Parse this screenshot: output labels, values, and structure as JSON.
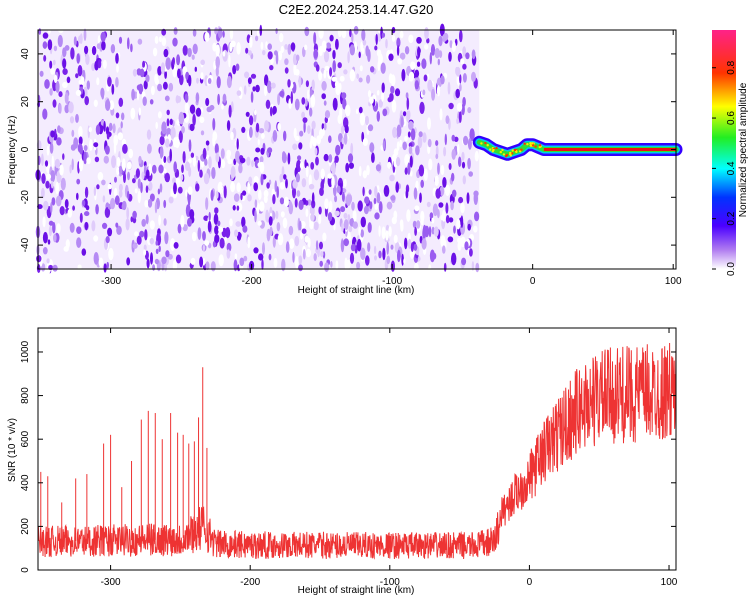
{
  "figure_title": "C2E2.2024.253.14.47.G20",
  "chart_data": [
    {
      "type": "heatmap",
      "xlabel": "Height of straight line (km)",
      "ylabel": "Frequency (Hz)",
      "xlim": [
        -352,
        102
      ],
      "ylim": [
        -50,
        50
      ],
      "xticks": [
        -300,
        -200,
        -100,
        0,
        100
      ],
      "yticks": [
        -40,
        -20,
        0,
        20,
        40
      ],
      "noise_region_x": [
        -352,
        -38
      ],
      "signal_track": [
        {
          "x": -38,
          "y": 3
        },
        {
          "x": -33,
          "y": 2
        },
        {
          "x": -28,
          "y": 0
        },
        {
          "x": -23,
          "y": -1
        },
        {
          "x": -18,
          "y": -2
        },
        {
          "x": -13,
          "y": -1
        },
        {
          "x": -8,
          "y": 0
        },
        {
          "x": -4,
          "y": 2
        },
        {
          "x": 0,
          "y": 2
        },
        {
          "x": 4,
          "y": 1
        },
        {
          "x": 8,
          "y": 0
        },
        {
          "x": 20,
          "y": 0
        },
        {
          "x": 40,
          "y": 0
        },
        {
          "x": 60,
          "y": 0
        },
        {
          "x": 80,
          "y": 0
        },
        {
          "x": 102,
          "y": 0
        }
      ],
      "colorbar": {
        "label": "Normalized spectral amplitude",
        "range": [
          0.0,
          0.95
        ],
        "ticks": [
          0.0,
          0.2,
          0.4,
          0.6,
          0.8
        ],
        "colormap": "rainbow"
      }
    },
    {
      "type": "line",
      "xlabel": "Height of straight line (km)",
      "ylabel": "SNR (10 * v/v)",
      "xlim": [
        -352,
        105
      ],
      "ylim": [
        0,
        1110
      ],
      "xticks": [
        -300,
        -200,
        -100,
        0,
        100
      ],
      "yticks": [
        0,
        200,
        400,
        600,
        800,
        1000
      ],
      "line_color": "#ee3333",
      "series": [
        {
          "trend_x": [
            -352,
            -250,
            -240,
            -233,
            -225,
            -200,
            -100,
            -40,
            -25,
            -20,
            -10,
            0,
            10,
            20,
            30,
            40,
            50,
            60,
            80,
            105
          ],
          "trend_y": [
            130,
            140,
            175,
            200,
            120,
            115,
            112,
            112,
            130,
            260,
            350,
            420,
            540,
            620,
            700,
            760,
            790,
            800,
            810,
            820
          ],
          "spikes": [
            {
              "x": -350,
              "y": 450
            },
            {
              "x": -345,
              "y": 430
            },
            {
              "x": -335,
              "y": 310
            },
            {
              "x": -325,
              "y": 420
            },
            {
              "x": -317,
              "y": 440
            },
            {
              "x": -305,
              "y": 580
            },
            {
              "x": -300,
              "y": 620
            },
            {
              "x": -292,
              "y": 380
            },
            {
              "x": -285,
              "y": 500
            },
            {
              "x": -278,
              "y": 690
            },
            {
              "x": -273,
              "y": 730
            },
            {
              "x": -268,
              "y": 720
            },
            {
              "x": -263,
              "y": 600
            },
            {
              "x": -257,
              "y": 720
            },
            {
              "x": -252,
              "y": 630
            },
            {
              "x": -248,
              "y": 620
            },
            {
              "x": -244,
              "y": 580
            },
            {
              "x": -240,
              "y": 590
            },
            {
              "x": -237,
              "y": 700
            },
            {
              "x": -234,
              "y": 930
            },
            {
              "x": -231,
              "y": 560
            }
          ]
        }
      ]
    }
  ]
}
